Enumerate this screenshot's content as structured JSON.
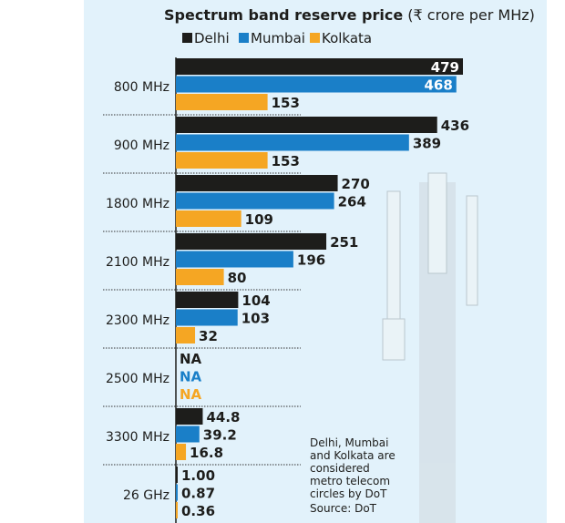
{
  "chart_data": {
    "type": "bar",
    "orientation": "horizontal",
    "title": "Spectrum band reserve price",
    "title_unit": "(₹ crore per MHz)",
    "categories": [
      "800 MHz",
      "900 MHz",
      "1800 MHz",
      "2100 MHz",
      "2300 MHz",
      "2500 MHz",
      "3300 MHz",
      "26 GHz"
    ],
    "series": [
      {
        "name": "Delhi",
        "color": "#1d1d1b",
        "values": [
          479,
          436,
          270,
          251,
          104,
          null,
          44.8,
          1.0
        ],
        "labels": [
          "479",
          "436",
          "270",
          "251",
          "104",
          "NA",
          "44.8",
          "1.00"
        ]
      },
      {
        "name": "Mumbai",
        "color": "#1a7fc8",
        "values": [
          468,
          389,
          264,
          196,
          103,
          null,
          39.2,
          0.87
        ],
        "labels": [
          "468",
          "389",
          "264",
          "196",
          "103",
          "NA",
          "39.2",
          "0.87"
        ]
      },
      {
        "name": "Kolkata",
        "color": "#f5a623",
        "values": [
          153,
          153,
          109,
          80,
          32,
          null,
          16.8,
          0.36
        ],
        "labels": [
          "153",
          "153",
          "109",
          "80",
          "32",
          "NA",
          "16.8",
          "0.36"
        ]
      }
    ],
    "legend_position": "top",
    "grid": false,
    "xlim": [
      0,
      479
    ],
    "note": [
      "Delhi, Mumbai",
      "and Kolkata are",
      "considered",
      "metro telecom",
      "circles by DoT"
    ],
    "source": "Source: DoT"
  }
}
